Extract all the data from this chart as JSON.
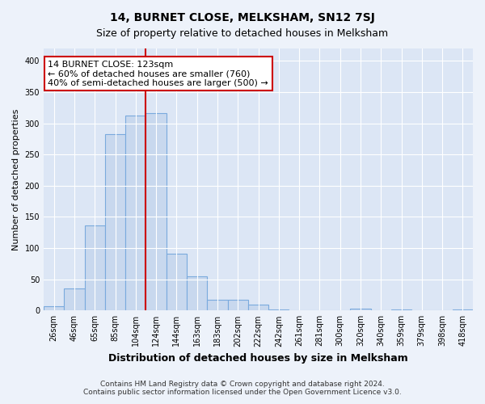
{
  "title": "14, BURNET CLOSE, MELKSHAM, SN12 7SJ",
  "subtitle": "Size of property relative to detached houses in Melksham",
  "xlabel": "Distribution of detached houses by size in Melksham",
  "ylabel": "Number of detached properties",
  "footer_line1": "Contains HM Land Registry data © Crown copyright and database right 2024.",
  "footer_line2": "Contains public sector information licensed under the Open Government Licence v3.0.",
  "bar_labels": [
    "26sqm",
    "46sqm",
    "65sqm",
    "85sqm",
    "104sqm",
    "124sqm",
    "144sqm",
    "163sqm",
    "183sqm",
    "202sqm",
    "222sqm",
    "242sqm",
    "261sqm",
    "281sqm",
    "300sqm",
    "320sqm",
    "340sqm",
    "359sqm",
    "379sqm",
    "398sqm",
    "418sqm"
  ],
  "bar_values": [
    7,
    35,
    136,
    283,
    313,
    316,
    91,
    55,
    17,
    17,
    9,
    2,
    1,
    1,
    0,
    3,
    0,
    2,
    0,
    0,
    2
  ],
  "bar_color": "#c8d8ee",
  "bar_edge_color": "#7aaadd",
  "vline_index": 5,
  "vline_color": "#cc0000",
  "ylim": [
    0,
    420
  ],
  "annotation_text": "14 BURNET CLOSE: 123sqm\n← 60% of detached houses are smaller (760)\n40% of semi-detached houses are larger (500) →",
  "annotation_box_color": "#ffffff",
  "annotation_box_edge_color": "#cc0000",
  "background_color": "#edf2fa",
  "plot_background_color": "#dce6f5",
  "grid_color": "#ffffff",
  "title_fontsize": 10,
  "subtitle_fontsize": 9,
  "xlabel_fontsize": 9,
  "ylabel_fontsize": 8,
  "tick_fontsize": 7,
  "annotation_fontsize": 8,
  "footer_fontsize": 6.5
}
